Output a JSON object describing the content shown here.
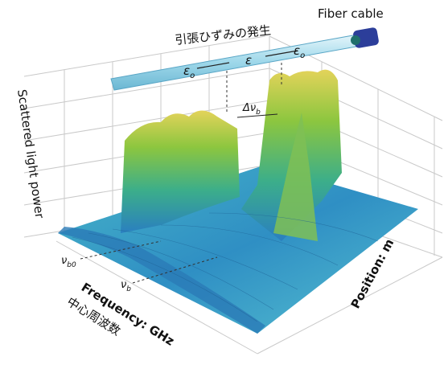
{
  "fiber": {
    "label": "Fiber cable",
    "annotation": "引張ひずみの発生",
    "strain_labels": [
      {
        "symbol": "ε",
        "sub": "o"
      },
      {
        "symbol": "ε",
        "sub": ""
      },
      {
        "symbol": "ε",
        "sub": "o"
      }
    ]
  },
  "shift": {
    "symbol": "Δν",
    "sub": "b"
  },
  "axes": {
    "z_label": "Scattered light power",
    "x_label": "Frequency: GHz",
    "x_label_ja": "中心周波数",
    "y_label": "Position: m",
    "x_marks": [
      {
        "symbol": "ν",
        "sub": "b0"
      },
      {
        "symbol": "ν",
        "sub": "b"
      }
    ]
  }
}
